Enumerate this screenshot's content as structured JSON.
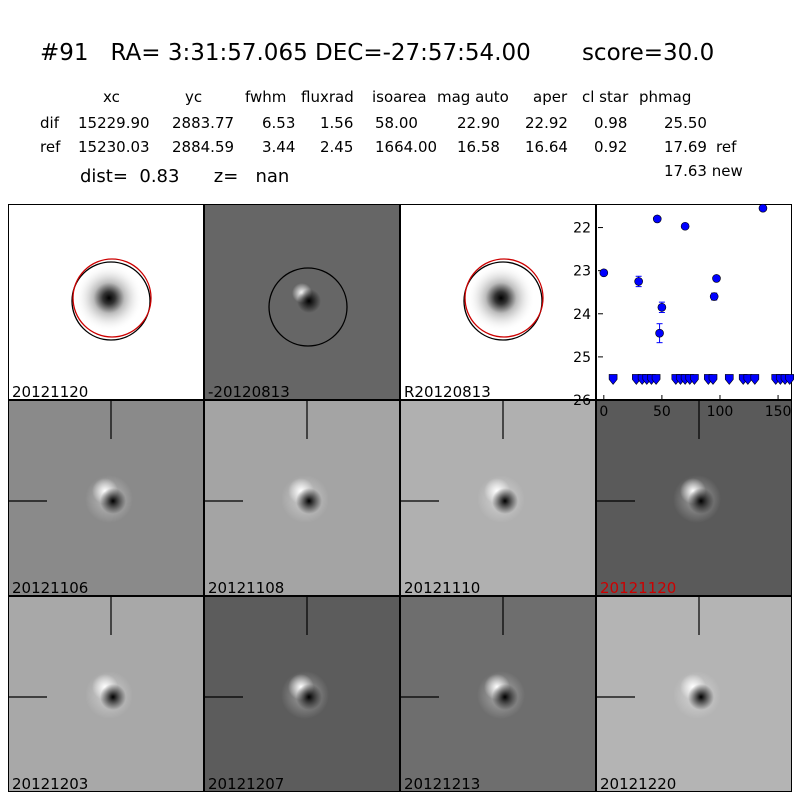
{
  "header": {
    "title": "#91   RA= 3:31:57.065 DEC=-27:57:54.00       score=30.0",
    "columns": [
      "xc",
      "yc",
      "fwhm",
      "fluxrad",
      "isoarea",
      "mag auto",
      "aper",
      "cl star",
      "phmag"
    ],
    "rows": [
      {
        "label": "dif",
        "values": [
          "15229.90",
          "2883.77",
          "6.53",
          "1.56",
          "58.00",
          "22.90",
          "22.92",
          "0.98",
          "25.50"
        ],
        "suffix": ""
      },
      {
        "label": "ref",
        "values": [
          "15230.03",
          "2884.59",
          "3.44",
          "2.45",
          "1664.00",
          "16.58",
          "16.64",
          "0.92",
          "17.69"
        ],
        "suffix": "ref"
      }
    ],
    "new_mag": "17.63 new",
    "dist_text": "dist=  0.83      z=   nan"
  },
  "stamps": [
    {
      "label": "20121120",
      "bg": "#ffffff",
      "kind": "star",
      "circles": [
        "#000000",
        "#cc0000"
      ],
      "label_color": "#000000"
    },
    {
      "label": "-20120813",
      "bg": "#666666",
      "kind": "diff",
      "circles": [
        "#000000"
      ],
      "label_color": "#000000"
    },
    {
      "label": "R20120813",
      "bg": "#ffffff",
      "kind": "star",
      "circles": [
        "#000000",
        "#cc0000"
      ],
      "label_color": "#000000"
    },
    {
      "label": "20121106",
      "bg": "#8a8a8a",
      "kind": "dipole",
      "label_color": "#000000"
    },
    {
      "label": "20121108",
      "bg": "#a4a4a4",
      "kind": "dipole",
      "label_color": "#000000"
    },
    {
      "label": "20121110",
      "bg": "#b0b0b0",
      "kind": "dipole",
      "label_color": "#000000"
    },
    {
      "label": "20121120",
      "bg": "#5a5a5a",
      "kind": "dipole",
      "label_color": "#cc0000"
    },
    {
      "label": "20121203",
      "bg": "#a8a8a8",
      "kind": "dipole",
      "label_color": "#000000"
    },
    {
      "label": "20121207",
      "bg": "#5c5c5c",
      "kind": "dipole",
      "label_color": "#000000"
    },
    {
      "label": "20121213",
      "bg": "#6e6e6e",
      "kind": "dipole",
      "label_color": "#000000"
    },
    {
      "label": "20121220",
      "bg": "#b4b4b4",
      "kind": "dipole",
      "label_color": "#000000"
    }
  ],
  "chart_data": {
    "type": "scatter",
    "title": "",
    "xlabel": "",
    "ylabel": "",
    "xlim": [
      -5,
      162
    ],
    "ylim": [
      26,
      21.5
    ],
    "y_inverted": true,
    "xticks": [
      0,
      50,
      100,
      150
    ],
    "yticks": [
      22,
      23,
      24,
      25,
      26
    ],
    "marker_color": "#0000ff",
    "points": [
      {
        "x": 0,
        "y": 23.05,
        "err": 0
      },
      {
        "x": 30,
        "y": 23.25,
        "err": 0.12
      },
      {
        "x": 46,
        "y": 21.8,
        "err": 0
      },
      {
        "x": 48,
        "y": 24.45,
        "err": 0.22
      },
      {
        "x": 50,
        "y": 23.85,
        "err": 0.12
      },
      {
        "x": 70,
        "y": 21.97,
        "err": 0
      },
      {
        "x": 95,
        "y": 23.6,
        "err": 0.08
      },
      {
        "x": 97,
        "y": 23.18,
        "err": 0
      },
      {
        "x": 137,
        "y": 21.55,
        "err": 0
      }
    ],
    "upper_limits": [
      {
        "x": 8,
        "y": 25.5
      },
      {
        "x": 28,
        "y": 25.5
      },
      {
        "x": 33,
        "y": 25.5
      },
      {
        "x": 37,
        "y": 25.5
      },
      {
        "x": 41,
        "y": 25.5
      },
      {
        "x": 45,
        "y": 25.5
      },
      {
        "x": 62,
        "y": 25.5
      },
      {
        "x": 66,
        "y": 25.5
      },
      {
        "x": 70,
        "y": 25.5
      },
      {
        "x": 74,
        "y": 25.5
      },
      {
        "x": 78,
        "y": 25.5
      },
      {
        "x": 90,
        "y": 25.5
      },
      {
        "x": 94,
        "y": 25.5
      },
      {
        "x": 108,
        "y": 25.5
      },
      {
        "x": 120,
        "y": 25.5
      },
      {
        "x": 124,
        "y": 25.5
      },
      {
        "x": 130,
        "y": 25.5
      },
      {
        "x": 148,
        "y": 25.5
      },
      {
        "x": 152,
        "y": 25.5
      },
      {
        "x": 156,
        "y": 25.5
      },
      {
        "x": 160,
        "y": 25.5
      }
    ]
  }
}
